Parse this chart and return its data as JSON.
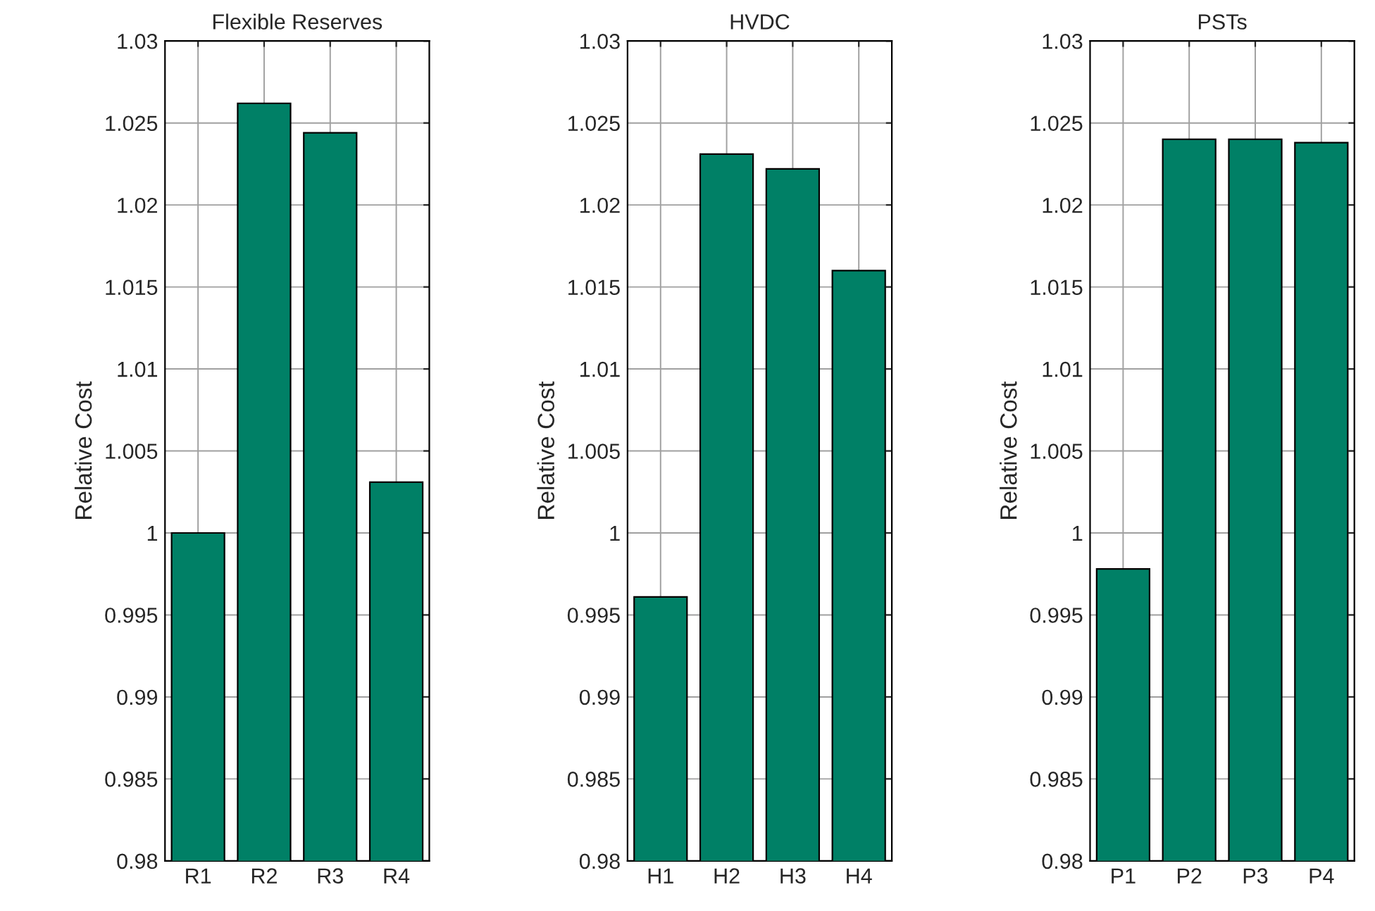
{
  "chart_data": [
    {
      "type": "bar",
      "title": "Flexible Reserves",
      "ylabel": "Relative Cost",
      "categories": [
        "R1",
        "R2",
        "R3",
        "R4"
      ],
      "values": [
        1.0,
        1.0262,
        1.0244,
        1.0031
      ],
      "color": "#008066",
      "ylim": [
        0.98,
        1.03
      ],
      "yticks": [
        0.98,
        0.985,
        0.99,
        0.995,
        1,
        1.005,
        1.01,
        1.015,
        1.02,
        1.025,
        1.03
      ],
      "grid": true
    },
    {
      "type": "bar",
      "title": "HVDC",
      "ylabel": "Relative Cost",
      "categories": [
        "H1",
        "H2",
        "H3",
        "H4"
      ],
      "values": [
        0.9961,
        1.0231,
        1.0222,
        1.016
      ],
      "color": "#008066",
      "ylim": [
        0.98,
        1.03
      ],
      "yticks": [
        0.98,
        0.985,
        0.99,
        0.995,
        1,
        1.005,
        1.01,
        1.015,
        1.02,
        1.025,
        1.03
      ],
      "grid": true
    },
    {
      "type": "bar",
      "title": "PSTs",
      "ylabel": "Relative Cost",
      "categories": [
        "P1",
        "P2",
        "P3",
        "P4"
      ],
      "values": [
        0.9978,
        1.024,
        1.024,
        1.0238
      ],
      "color": "#008066",
      "ylim": [
        0.98,
        1.03
      ],
      "yticks": [
        0.98,
        0.985,
        0.99,
        0.995,
        1,
        1.005,
        1.01,
        1.015,
        1.02,
        1.025,
        1.03
      ],
      "grid": true
    }
  ]
}
